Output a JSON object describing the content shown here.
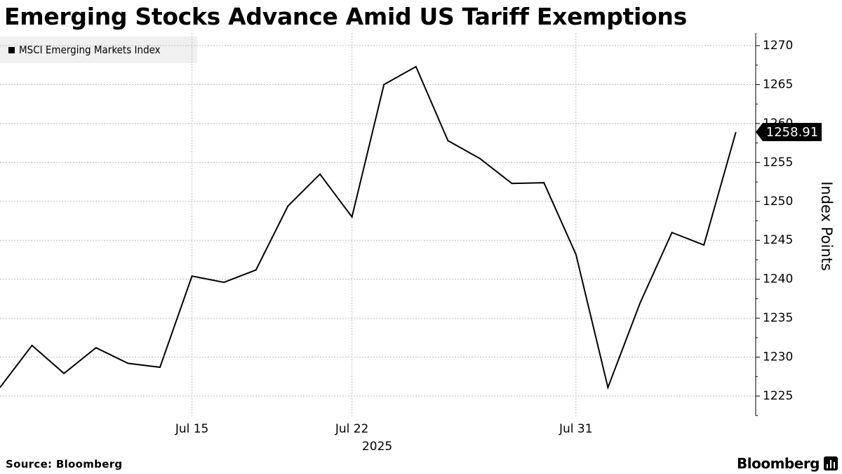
{
  "title": "Emerging Stocks Advance Amid US Tariff Exemptions",
  "source": "Source: Bloomberg",
  "brand": "Bloomberg",
  "brand_icon": "bar-chart-icon",
  "chart_data": {
    "type": "line",
    "legend": [
      "MSCI Emerging Markets Index"
    ],
    "legend_placement": "top-left",
    "ylabel": "Index Points",
    "ylim": [
      1222,
      1272
    ],
    "yticks": [
      1225,
      1230,
      1235,
      1240,
      1245,
      1250,
      1255,
      1260,
      1265,
      1270
    ],
    "xticks": [
      {
        "label": "Jul 15",
        "index": 6
      },
      {
        "label": "Jul 22",
        "index": 11
      },
      {
        "label": "Jul 31",
        "index": 18
      }
    ],
    "x_year_label": "2025",
    "grid": true,
    "line_color": "#000000",
    "last_value_label": "1258.91",
    "series": [
      {
        "name": "MSCI Emerging Markets Index",
        "values": [
          1226.1,
          1231.5,
          1227.9,
          1231.2,
          1229.2,
          1228.7,
          1240.4,
          1239.6,
          1241.2,
          1249.4,
          1253.5,
          1248.0,
          1265.0,
          1267.3,
          1257.8,
          1255.5,
          1252.3,
          1252.4,
          1243.2,
          1226.1,
          1236.9,
          1246.0,
          1244.4,
          1258.91
        ]
      }
    ]
  }
}
